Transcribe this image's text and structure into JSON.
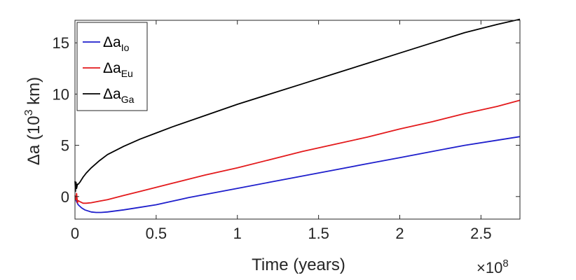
{
  "chart_data": {
    "type": "line",
    "xlabel": "Time (years)",
    "ylabel_main": "Δa (10",
    "ylabel_sup": "3",
    "ylabel_end": " km)",
    "x_exponent_label": "×10",
    "x_exponent": "8",
    "xlim": [
      0,
      2.74
    ],
    "ylim": [
      -2.2,
      17.2
    ],
    "x_ticks": [
      0,
      0.5,
      1,
      1.5,
      2,
      2.5
    ],
    "x_tick_labels": [
      "0",
      "0.5",
      "1",
      "1.5",
      "2",
      "2.5"
    ],
    "y_ticks": [
      0,
      5,
      10,
      15
    ],
    "y_tick_labels": [
      "0",
      "5",
      "10",
      "15"
    ],
    "legend_position": "top-left",
    "series": [
      {
        "name": "Δa",
        "sub": "Io",
        "color": "#1f1fcc",
        "x": [
          0.0,
          0.01,
          0.02,
          0.04,
          0.06,
          0.08,
          0.1,
          0.13,
          0.16,
          0.2,
          0.25,
          0.3,
          0.4,
          0.5,
          0.6,
          0.7,
          0.8,
          0.9,
          1.0,
          1.2,
          1.4,
          1.6,
          1.8,
          2.0,
          2.2,
          2.4,
          2.6,
          2.74
        ],
        "y": [
          -0.1,
          -0.5,
          -0.8,
          -1.1,
          -1.3,
          -1.4,
          -1.5,
          -1.55,
          -1.55,
          -1.5,
          -1.4,
          -1.3,
          -1.05,
          -0.8,
          -0.45,
          -0.1,
          0.2,
          0.5,
          0.8,
          1.4,
          2.0,
          2.6,
          3.2,
          3.8,
          4.4,
          5.0,
          5.5,
          5.85
        ]
      },
      {
        "name": "Δa",
        "sub": "Eu",
        "color": "#e31a1c",
        "x": [
          0.0,
          0.005,
          0.01,
          0.015,
          0.02,
          0.03,
          0.05,
          0.07,
          0.1,
          0.15,
          0.2,
          0.3,
          0.4,
          0.5,
          0.6,
          0.8,
          1.0,
          1.2,
          1.4,
          1.6,
          1.8,
          2.0,
          2.2,
          2.4,
          2.6,
          2.74
        ],
        "y": [
          0.1,
          -0.3,
          0.3,
          -0.6,
          -0.4,
          -0.5,
          -0.65,
          -0.65,
          -0.6,
          -0.45,
          -0.3,
          0.1,
          0.5,
          0.9,
          1.3,
          2.1,
          2.8,
          3.6,
          4.4,
          5.1,
          5.8,
          6.6,
          7.3,
          8.1,
          8.8,
          9.4
        ]
      },
      {
        "name": "Δa",
        "sub": "Ga",
        "color": "#000000",
        "x": [
          0.0,
          0.003,
          0.006,
          0.01,
          0.015,
          0.02,
          0.03,
          0.05,
          0.07,
          0.1,
          0.15,
          0.2,
          0.3,
          0.4,
          0.5,
          0.6,
          0.8,
          1.0,
          1.2,
          1.4,
          1.6,
          1.8,
          2.0,
          2.2,
          2.4,
          2.6,
          2.74
        ],
        "y": [
          1.5,
          0.5,
          1.4,
          0.8,
          1.2,
          1.2,
          1.4,
          1.9,
          2.3,
          2.8,
          3.5,
          4.1,
          4.9,
          5.6,
          6.2,
          6.8,
          7.9,
          9.0,
          10.0,
          11.0,
          12.0,
          13.0,
          14.0,
          15.0,
          16.0,
          16.8,
          17.3
        ]
      }
    ]
  }
}
